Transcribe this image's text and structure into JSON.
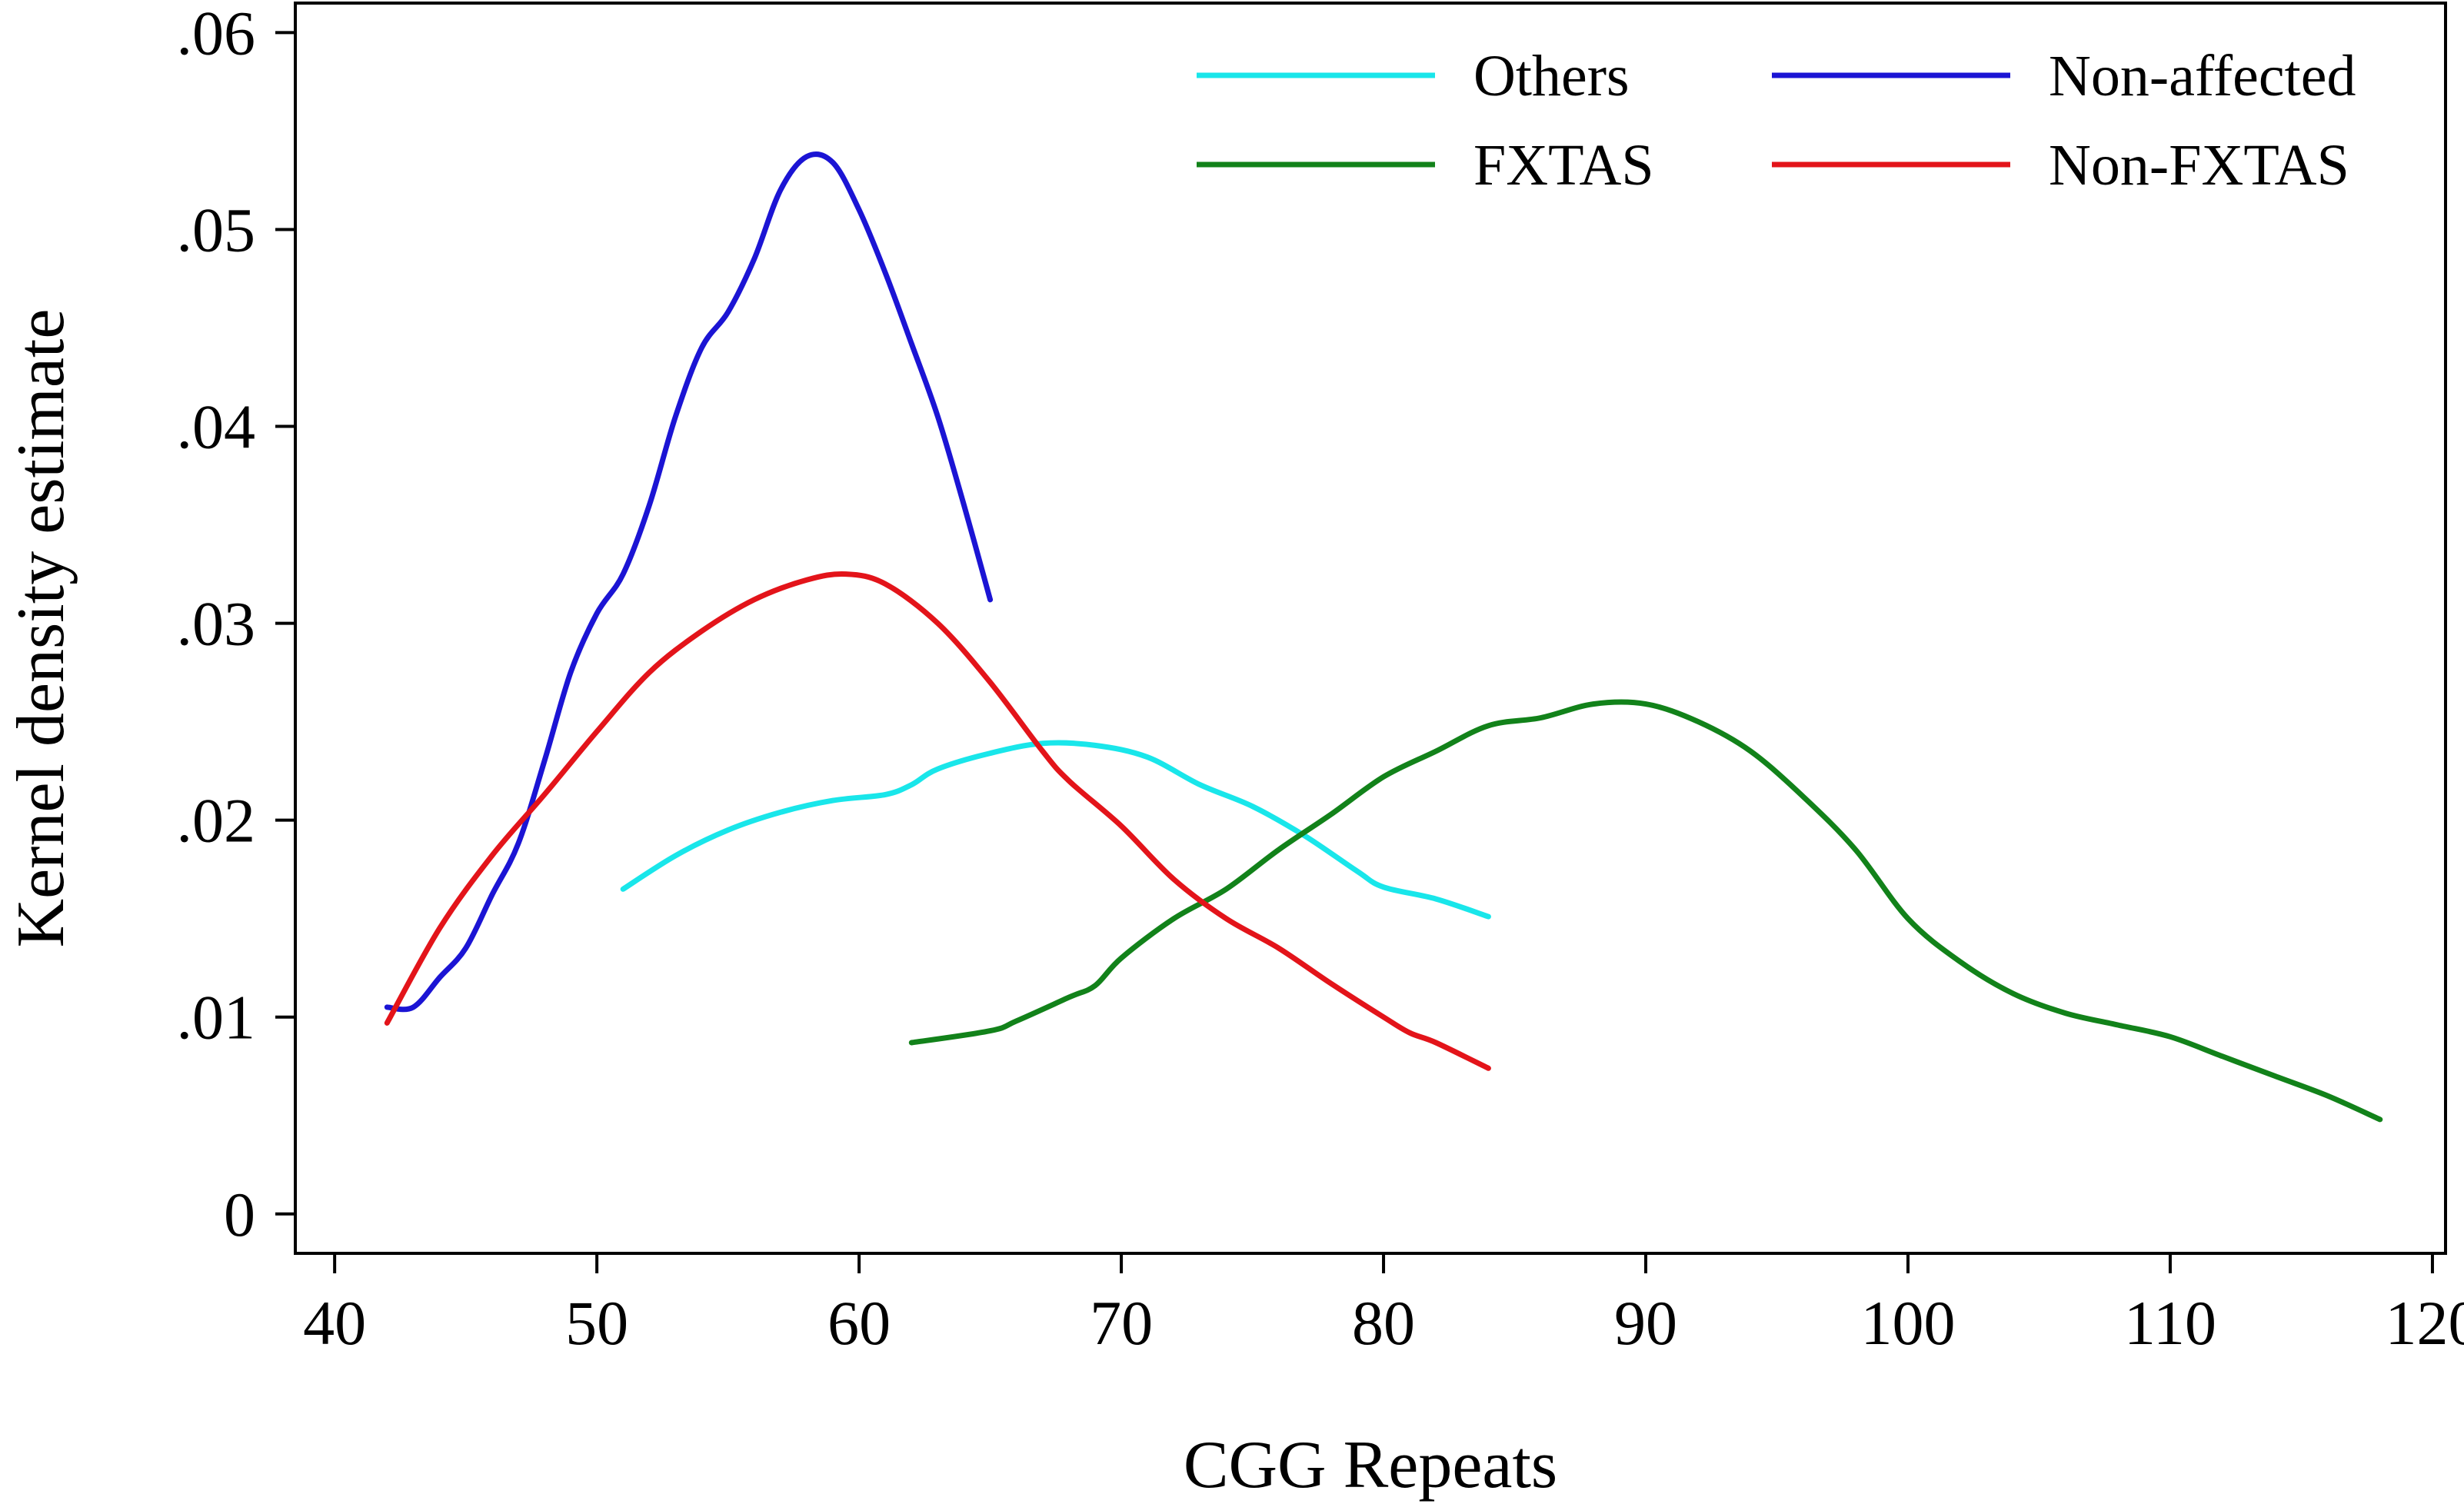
{
  "chart_data": {
    "type": "line",
    "title": "",
    "xlabel": "CGG Repeats",
    "ylabel": "Kernel density estimate",
    "xlim": [
      38.5,
      120.5
    ],
    "ylim": [
      -0.002,
      0.0615
    ],
    "x_ticks": [
      40,
      50,
      60,
      70,
      80,
      90,
      100,
      110,
      120
    ],
    "x_tick_labels": [
      "40",
      "50",
      "60",
      "70",
      "80",
      "90",
      "100",
      "110",
      "120"
    ],
    "y_ticks": [
      0,
      0.01,
      0.02,
      0.03,
      0.04,
      0.05,
      0.06
    ],
    "y_tick_labels": [
      "0",
      ".01",
      ".02",
      ".03",
      ".04",
      ".05",
      ".06"
    ],
    "grid": false,
    "legend_position": "top-right",
    "series": [
      {
        "name": "Others",
        "color": "#19E6EA",
        "x": [
          51,
          53,
          55,
          57,
          59,
          61,
          62,
          63,
          65,
          67,
          69,
          71,
          73,
          75,
          77,
          79,
          80,
          82,
          84
        ],
        "y": [
          0.0165,
          0.0182,
          0.0195,
          0.0204,
          0.021,
          0.0213,
          0.0218,
          0.0226,
          0.0234,
          0.0239,
          0.0238,
          0.0232,
          0.0218,
          0.0207,
          0.0192,
          0.0174,
          0.0166,
          0.016,
          0.0151
        ]
      },
      {
        "name": "Non-affected",
        "color": "#1B14D4",
        "x": [
          42,
          43,
          44,
          45,
          46,
          47,
          48,
          49,
          50,
          51,
          52,
          53,
          54,
          55,
          56,
          57,
          58,
          59,
          60,
          61,
          62,
          63,
          64,
          65
        ],
        "y": [
          0.0105,
          0.0105,
          0.012,
          0.0135,
          0.0162,
          0.0188,
          0.023,
          0.0275,
          0.0305,
          0.0325,
          0.036,
          0.0405,
          0.044,
          0.0458,
          0.0485,
          0.052,
          0.0537,
          0.0534,
          0.051,
          0.0478,
          0.0442,
          0.0405,
          0.036,
          0.0312
        ]
      },
      {
        "name": "FXTAS",
        "color": "#12821A",
        "x": [
          62,
          65,
          66,
          68,
          69,
          70,
          72,
          74,
          76,
          78,
          80,
          82,
          84,
          86,
          88,
          90,
          92,
          94,
          96,
          98,
          100,
          102,
          104,
          106,
          108,
          110,
          112,
          114,
          116,
          118
        ],
        "y": [
          0.0087,
          0.0093,
          0.0098,
          0.011,
          0.0116,
          0.013,
          0.015,
          0.0165,
          0.0185,
          0.0203,
          0.0222,
          0.0235,
          0.0248,
          0.0252,
          0.0259,
          0.0259,
          0.025,
          0.0235,
          0.0212,
          0.0185,
          0.015,
          0.0128,
          0.0112,
          0.0102,
          0.0096,
          0.009,
          0.008,
          0.007,
          0.006,
          0.0048
        ]
      },
      {
        "name": "Non-FXTAS",
        "color": "#E3141A",
        "x": [
          42,
          44,
          46,
          48,
          50,
          52,
          54,
          56,
          58,
          59.5,
          61,
          63,
          65,
          67,
          68,
          70,
          72,
          74,
          76,
          78,
          80,
          81,
          82,
          84
        ],
        "y": [
          0.0097,
          0.0145,
          0.0182,
          0.0213,
          0.0245,
          0.0275,
          0.0296,
          0.0312,
          0.0322,
          0.0325,
          0.032,
          0.03,
          0.027,
          0.0235,
          0.022,
          0.0197,
          0.017,
          0.015,
          0.0135,
          0.0117,
          0.01,
          0.0092,
          0.0087,
          0.0074
        ]
      }
    ]
  }
}
